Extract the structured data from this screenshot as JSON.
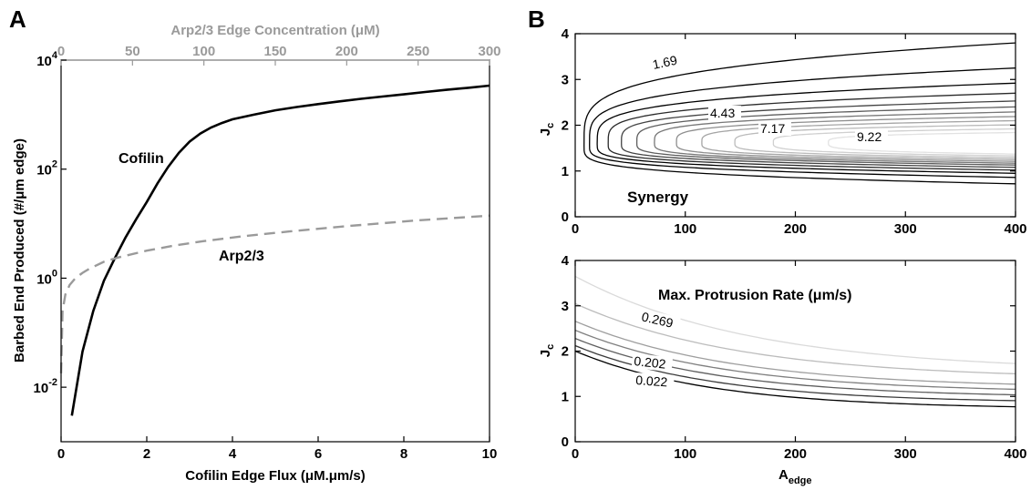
{
  "chart_data": [
    {
      "panel": "A",
      "type": "line",
      "xlabel": "Cofilin Edge Flux (μM.μm/s)",
      "x2label": "Arp2/3 Edge Concentration (μM)",
      "ylabel": "Barbed End Produced  (#/μm edge)",
      "xlim": [
        0,
        10
      ],
      "x2lim": [
        0,
        300
      ],
      "ylim": [
        0.001,
        10000
      ],
      "yscale": "log",
      "xticks": [
        "0",
        "2",
        "4",
        "6",
        "8",
        "10"
      ],
      "x2ticks": [
        "0",
        "50",
        "100",
        "150",
        "200",
        "250",
        "300"
      ],
      "yticks": [
        {
          "base": "10",
          "exp": "4"
        },
        {
          "base": "10",
          "exp": "2"
        },
        {
          "base": "10",
          "exp": "0"
        },
        {
          "base": "10",
          "exp": "-2"
        }
      ],
      "series": [
        {
          "name": "Cofilin",
          "color": "#000000",
          "style": "solid",
          "axis": "bottom",
          "x": [
            0.25,
            0.5,
            0.75,
            1.0,
            1.25,
            1.5,
            1.75,
            2.0,
            2.25,
            2.5,
            2.75,
            3.0,
            3.25,
            3.5,
            3.75,
            4.0,
            4.5,
            5.0,
            5.5,
            6.0,
            6.5,
            7.0,
            7.5,
            8.0,
            8.5,
            9.0,
            9.5,
            10.0
          ],
          "y": [
            0.003,
            0.045,
            0.25,
            0.9,
            2.3,
            5.5,
            12,
            25,
            55,
            110,
            200,
            320,
            450,
            580,
            700,
            820,
            1000,
            1200,
            1380,
            1560,
            1750,
            1950,
            2150,
            2350,
            2600,
            2850,
            3100,
            3400
          ]
        },
        {
          "name": "Arp2/3",
          "color": "#9a9a9a",
          "style": "dashed",
          "axis": "top",
          "x": [
            0,
            1,
            3,
            6,
            10,
            15,
            20,
            30,
            40,
            60,
            80,
            100,
            130,
            160,
            200,
            250,
            300
          ],
          "y": [
            0.018,
            0.25,
            0.5,
            0.75,
            1.0,
            1.25,
            1.5,
            2.0,
            2.4,
            3.2,
            4.0,
            4.8,
            6.0,
            7.2,
            9.0,
            11.5,
            14.0
          ]
        }
      ]
    },
    {
      "panel": "B-top",
      "type": "contour",
      "xlabel": "",
      "ylabel": "J",
      "ylabel_sub": "c",
      "xlim": [
        0,
        400
      ],
      "ylim": [
        0,
        4
      ],
      "xticks": [
        "0",
        "100",
        "200",
        "300",
        "400"
      ],
      "yticks": [
        "0",
        "1",
        "2",
        "3",
        "4"
      ],
      "annotation": "Synergy",
      "contour_labels": [
        "1.69",
        "4.43",
        "7.17",
        "9.22"
      ],
      "levels": [
        {
          "label": "1.69",
          "tipA": 8,
          "tipJ": 1.55,
          "upA": 400,
          "upJ": 3.8,
          "loA": 400,
          "loJ": 0.72,
          "color": "#000000"
        },
        {
          "tipA": 13,
          "tipJ": 1.57,
          "upA": 400,
          "upJ": 3.25,
          "loA": 400,
          "loJ": 0.86,
          "color": "#000000"
        },
        {
          "tipA": 20,
          "tipJ": 1.59,
          "upA": 400,
          "upJ": 2.92,
          "loA": 400,
          "loJ": 0.95,
          "color": "#000000"
        },
        {
          "tipA": 30,
          "tipJ": 1.6,
          "upA": 400,
          "upJ": 2.7,
          "loA": 400,
          "loJ": 1.02,
          "color": "#2a2a2a"
        },
        {
          "label": "4.43",
          "tipA": 42,
          "tipJ": 1.61,
          "upA": 400,
          "upJ": 2.53,
          "loA": 400,
          "loJ": 1.08,
          "color": "#444444"
        },
        {
          "tipA": 56,
          "tipJ": 1.62,
          "upA": 400,
          "upJ": 2.4,
          "loA": 400,
          "loJ": 1.13,
          "color": "#5e5e5e"
        },
        {
          "tipA": 72,
          "tipJ": 1.62,
          "upA": 400,
          "upJ": 2.29,
          "loA": 400,
          "loJ": 1.17,
          "color": "#777777"
        },
        {
          "tipA": 92,
          "tipJ": 1.62,
          "upA": 400,
          "upJ": 2.19,
          "loA": 400,
          "loJ": 1.21,
          "color": "#8e8e8e"
        },
        {
          "label": "7.17",
          "tipA": 115,
          "tipJ": 1.62,
          "upA": 400,
          "upJ": 2.1,
          "loA": 400,
          "loJ": 1.25,
          "color": "#a5a5a5"
        },
        {
          "tipA": 145,
          "tipJ": 1.62,
          "upA": 400,
          "upJ": 2.01,
          "loA": 400,
          "loJ": 1.29,
          "color": "#bbbbbb"
        },
        {
          "label": "9.22",
          "tipA": 180,
          "tipJ": 1.62,
          "upA": 400,
          "upJ": 1.92,
          "loA": 400,
          "loJ": 1.33,
          "color": "#d0d0d0"
        },
        {
          "tipA": 230,
          "tipJ": 1.62,
          "upA": 400,
          "upJ": 1.84,
          "loA": 400,
          "loJ": 1.37,
          "color": "#e2e2e2"
        }
      ]
    },
    {
      "panel": "B-bottom",
      "type": "contour",
      "xlabel": "A",
      "xlabel_sub": "edge",
      "ylabel": "J",
      "ylabel_sub": "c",
      "xlim": [
        0,
        400
      ],
      "ylim": [
        0,
        4
      ],
      "xticks": [
        "0",
        "100",
        "200",
        "300",
        "400"
      ],
      "yticks": [
        "0",
        "1",
        "2",
        "3",
        "4"
      ],
      "annotation": "Max. Protrusion Rate (μm/s)",
      "contour_labels": [
        "0.269",
        "0.202",
        "0.022"
      ],
      "levels": [
        {
          "label": "0.022",
          "J0": 2.0,
          "Jend": 0.72,
          "k": 0.008,
          "color": "#000000"
        },
        {
          "J0": 2.12,
          "Jend": 0.85,
          "k": 0.0078,
          "color": "#3a3a3a"
        },
        {
          "label": "0.202",
          "J0": 2.28,
          "Jend": 0.97,
          "k": 0.0075,
          "color": "#5f5f5f"
        },
        {
          "J0": 2.46,
          "Jend": 1.08,
          "k": 0.0072,
          "color": "#7f7f7f"
        },
        {
          "J0": 2.66,
          "Jend": 1.18,
          "k": 0.007,
          "color": "#9e9e9e"
        },
        {
          "label": "0.269",
          "J0": 3.05,
          "Jend": 1.38,
          "k": 0.0066,
          "color": "#bcbcbc"
        },
        {
          "J0": 3.65,
          "Jend": 1.55,
          "k": 0.0062,
          "color": "#dadada"
        }
      ]
    }
  ]
}
